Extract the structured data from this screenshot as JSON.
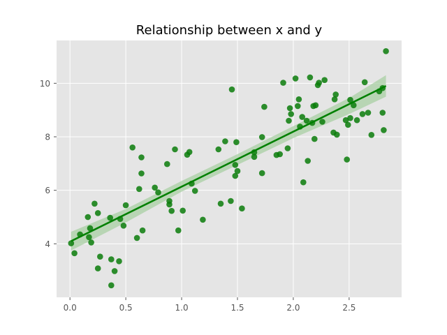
{
  "chart_data": {
    "type": "scatter",
    "title": "Relationship between x and y",
    "xlabel": "",
    "ylabel": "",
    "xlim": [
      -0.12,
      2.97
    ],
    "ylim": [
      2.0,
      11.6
    ],
    "xticks": [
      0.0,
      0.5,
      1.0,
      1.5,
      2.0,
      2.5
    ],
    "xtick_labels": [
      "0.0",
      "0.5",
      "1.0",
      "1.5",
      "2.0",
      "2.5"
    ],
    "yticks": [
      4,
      6,
      8,
      10
    ],
    "ytick_labels": [
      "4",
      "6",
      "8",
      "10"
    ],
    "grid": true,
    "style": "ggplot",
    "colors": {
      "points": "#0a7d0a",
      "regression_line": "#008000",
      "confidence_band": "#a8cfa3",
      "axes_background": "#e5e5e5",
      "grid": "#ffffff"
    },
    "points": [
      {
        "x": 0.01,
        "y": 4.02
      },
      {
        "x": 0.04,
        "y": 3.65
      },
      {
        "x": 0.09,
        "y": 4.35
      },
      {
        "x": 0.16,
        "y": 5.0
      },
      {
        "x": 0.17,
        "y": 4.25
      },
      {
        "x": 0.18,
        "y": 4.58
      },
      {
        "x": 0.19,
        "y": 4.05
      },
      {
        "x": 0.22,
        "y": 5.5
      },
      {
        "x": 0.25,
        "y": 5.15
      },
      {
        "x": 0.25,
        "y": 3.08
      },
      {
        "x": 0.27,
        "y": 3.52
      },
      {
        "x": 0.36,
        "y": 4.97
      },
      {
        "x": 0.37,
        "y": 3.42
      },
      {
        "x": 0.37,
        "y": 2.45
      },
      {
        "x": 0.4,
        "y": 2.98
      },
      {
        "x": 0.44,
        "y": 3.35
      },
      {
        "x": 0.45,
        "y": 4.93
      },
      {
        "x": 0.48,
        "y": 4.68
      },
      {
        "x": 0.5,
        "y": 5.44
      },
      {
        "x": 0.56,
        "y": 7.6
      },
      {
        "x": 0.6,
        "y": 4.22
      },
      {
        "x": 0.62,
        "y": 6.05
      },
      {
        "x": 0.64,
        "y": 7.23
      },
      {
        "x": 0.64,
        "y": 6.63
      },
      {
        "x": 0.65,
        "y": 4.5
      },
      {
        "x": 0.76,
        "y": 6.1
      },
      {
        "x": 0.79,
        "y": 5.92
      },
      {
        "x": 0.87,
        "y": 6.98
      },
      {
        "x": 0.89,
        "y": 5.6
      },
      {
        "x": 0.89,
        "y": 5.47
      },
      {
        "x": 0.91,
        "y": 5.23
      },
      {
        "x": 0.94,
        "y": 7.53
      },
      {
        "x": 0.97,
        "y": 4.5
      },
      {
        "x": 1.01,
        "y": 5.24
      },
      {
        "x": 1.05,
        "y": 7.33
      },
      {
        "x": 1.07,
        "y": 7.43
      },
      {
        "x": 1.09,
        "y": 6.25
      },
      {
        "x": 1.12,
        "y": 5.98
      },
      {
        "x": 1.19,
        "y": 4.9
      },
      {
        "x": 1.33,
        "y": 7.53
      },
      {
        "x": 1.35,
        "y": 5.5
      },
      {
        "x": 1.39,
        "y": 7.83
      },
      {
        "x": 1.44,
        "y": 5.6
      },
      {
        "x": 1.45,
        "y": 9.77
      },
      {
        "x": 1.48,
        "y": 6.95
      },
      {
        "x": 1.48,
        "y": 6.54
      },
      {
        "x": 1.49,
        "y": 7.8
      },
      {
        "x": 1.5,
        "y": 6.72
      },
      {
        "x": 1.54,
        "y": 5.32
      },
      {
        "x": 1.65,
        "y": 7.25
      },
      {
        "x": 1.65,
        "y": 7.42
      },
      {
        "x": 1.72,
        "y": 6.64
      },
      {
        "x": 1.72,
        "y": 7.99
      },
      {
        "x": 1.74,
        "y": 9.12
      },
      {
        "x": 1.85,
        "y": 7.32
      },
      {
        "x": 1.88,
        "y": 7.35
      },
      {
        "x": 1.91,
        "y": 10.02
      },
      {
        "x": 1.95,
        "y": 7.57
      },
      {
        "x": 1.96,
        "y": 8.6
      },
      {
        "x": 1.97,
        "y": 9.07
      },
      {
        "x": 1.98,
        "y": 8.85
      },
      {
        "x": 2.02,
        "y": 10.18
      },
      {
        "x": 2.04,
        "y": 9.15
      },
      {
        "x": 2.05,
        "y": 9.4
      },
      {
        "x": 2.06,
        "y": 8.38
      },
      {
        "x": 2.08,
        "y": 8.74
      },
      {
        "x": 2.09,
        "y": 6.3
      },
      {
        "x": 2.12,
        "y": 8.6
      },
      {
        "x": 2.13,
        "y": 7.1
      },
      {
        "x": 2.15,
        "y": 10.22
      },
      {
        "x": 2.17,
        "y": 8.52
      },
      {
        "x": 2.18,
        "y": 9.15
      },
      {
        "x": 2.19,
        "y": 7.92
      },
      {
        "x": 2.2,
        "y": 9.18
      },
      {
        "x": 2.22,
        "y": 9.93
      },
      {
        "x": 2.23,
        "y": 10.02
      },
      {
        "x": 2.26,
        "y": 8.56
      },
      {
        "x": 2.28,
        "y": 10.12
      },
      {
        "x": 2.36,
        "y": 8.16
      },
      {
        "x": 2.37,
        "y": 9.4
      },
      {
        "x": 2.38,
        "y": 9.58
      },
      {
        "x": 2.39,
        "y": 8.08
      },
      {
        "x": 2.47,
        "y": 8.62
      },
      {
        "x": 2.48,
        "y": 7.15
      },
      {
        "x": 2.49,
        "y": 8.45
      },
      {
        "x": 2.51,
        "y": 8.7
      },
      {
        "x": 2.51,
        "y": 9.38
      },
      {
        "x": 2.54,
        "y": 9.18
      },
      {
        "x": 2.57,
        "y": 8.62
      },
      {
        "x": 2.62,
        "y": 8.85
      },
      {
        "x": 2.64,
        "y": 10.04
      },
      {
        "x": 2.67,
        "y": 8.9
      },
      {
        "x": 2.7,
        "y": 8.07
      },
      {
        "x": 2.77,
        "y": 9.7
      },
      {
        "x": 2.8,
        "y": 9.82
      },
      {
        "x": 2.8,
        "y": 8.9
      },
      {
        "x": 2.81,
        "y": 8.25
      },
      {
        "x": 2.83,
        "y": 11.2
      }
    ],
    "regression_line": {
      "x": [
        0.01,
        2.83
      ],
      "y": [
        4.1,
        9.9
      ]
    },
    "confidence_band": {
      "x": [
        0.01,
        0.5,
        1.0,
        1.5,
        2.0,
        2.5,
        2.83
      ],
      "upper": [
        4.45,
        5.3,
        6.35,
        7.35,
        8.4,
        9.45,
        10.3
      ],
      "lower": [
        3.75,
        4.8,
        5.95,
        6.95,
        7.95,
        8.85,
        9.5
      ]
    }
  }
}
